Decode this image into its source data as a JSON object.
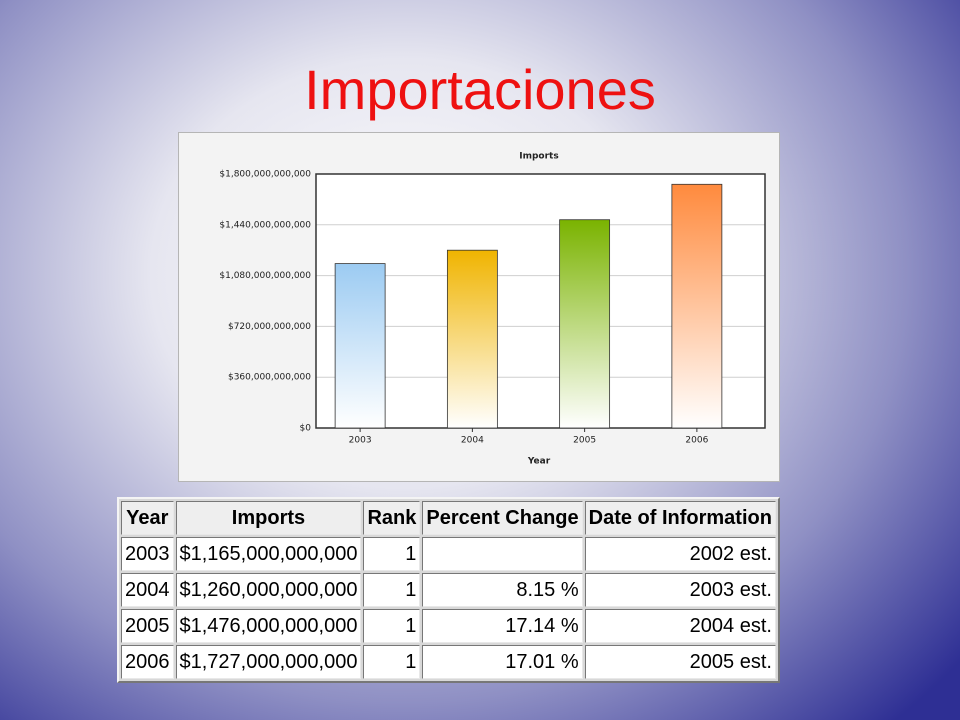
{
  "title": "Importaciones",
  "chart_data": {
    "type": "bar",
    "title": "Imports",
    "x_label": "Year",
    "categories": [
      "2003",
      "2004",
      "2005",
      "2006"
    ],
    "values": [
      1165000000000,
      1260000000000,
      1476000000000,
      1727000000000
    ],
    "colors": [
      "#9ccbf2",
      "#f0b400",
      "#7ab300",
      "#ff8a3d"
    ],
    "ylim": [
      0,
      1800000000000
    ],
    "yticks": [
      {
        "value": 0,
        "label": "$0"
      },
      {
        "value": 360000000000,
        "label": "$360,000,000,000"
      },
      {
        "value": 720000000000,
        "label": "$720,000,000,000"
      },
      {
        "value": 1080000000000,
        "label": "$1,080,000,000,000"
      },
      {
        "value": 1440000000000,
        "label": "$1,440,000,000,000"
      },
      {
        "value": 1800000000000,
        "label": "$1,800,000,000,000"
      }
    ],
    "grid": true
  },
  "table": {
    "header": [
      "Year",
      "Imports",
      "Rank",
      "Percent Change",
      "Date of Information"
    ],
    "rows": [
      [
        "2003",
        "$1,165,000,000,000",
        "1",
        null,
        "2002 est."
      ],
      [
        "2004",
        "$1,260,000,000,000",
        "1",
        "8.15 %",
        "2003 est."
      ],
      [
        "2005",
        "$1,476,000,000,000",
        "1",
        "17.14 %",
        "2004 est."
      ],
      [
        "2006",
        "$1,727,000,000,000",
        "1",
        "17.01 %",
        "2005 est."
      ]
    ]
  }
}
